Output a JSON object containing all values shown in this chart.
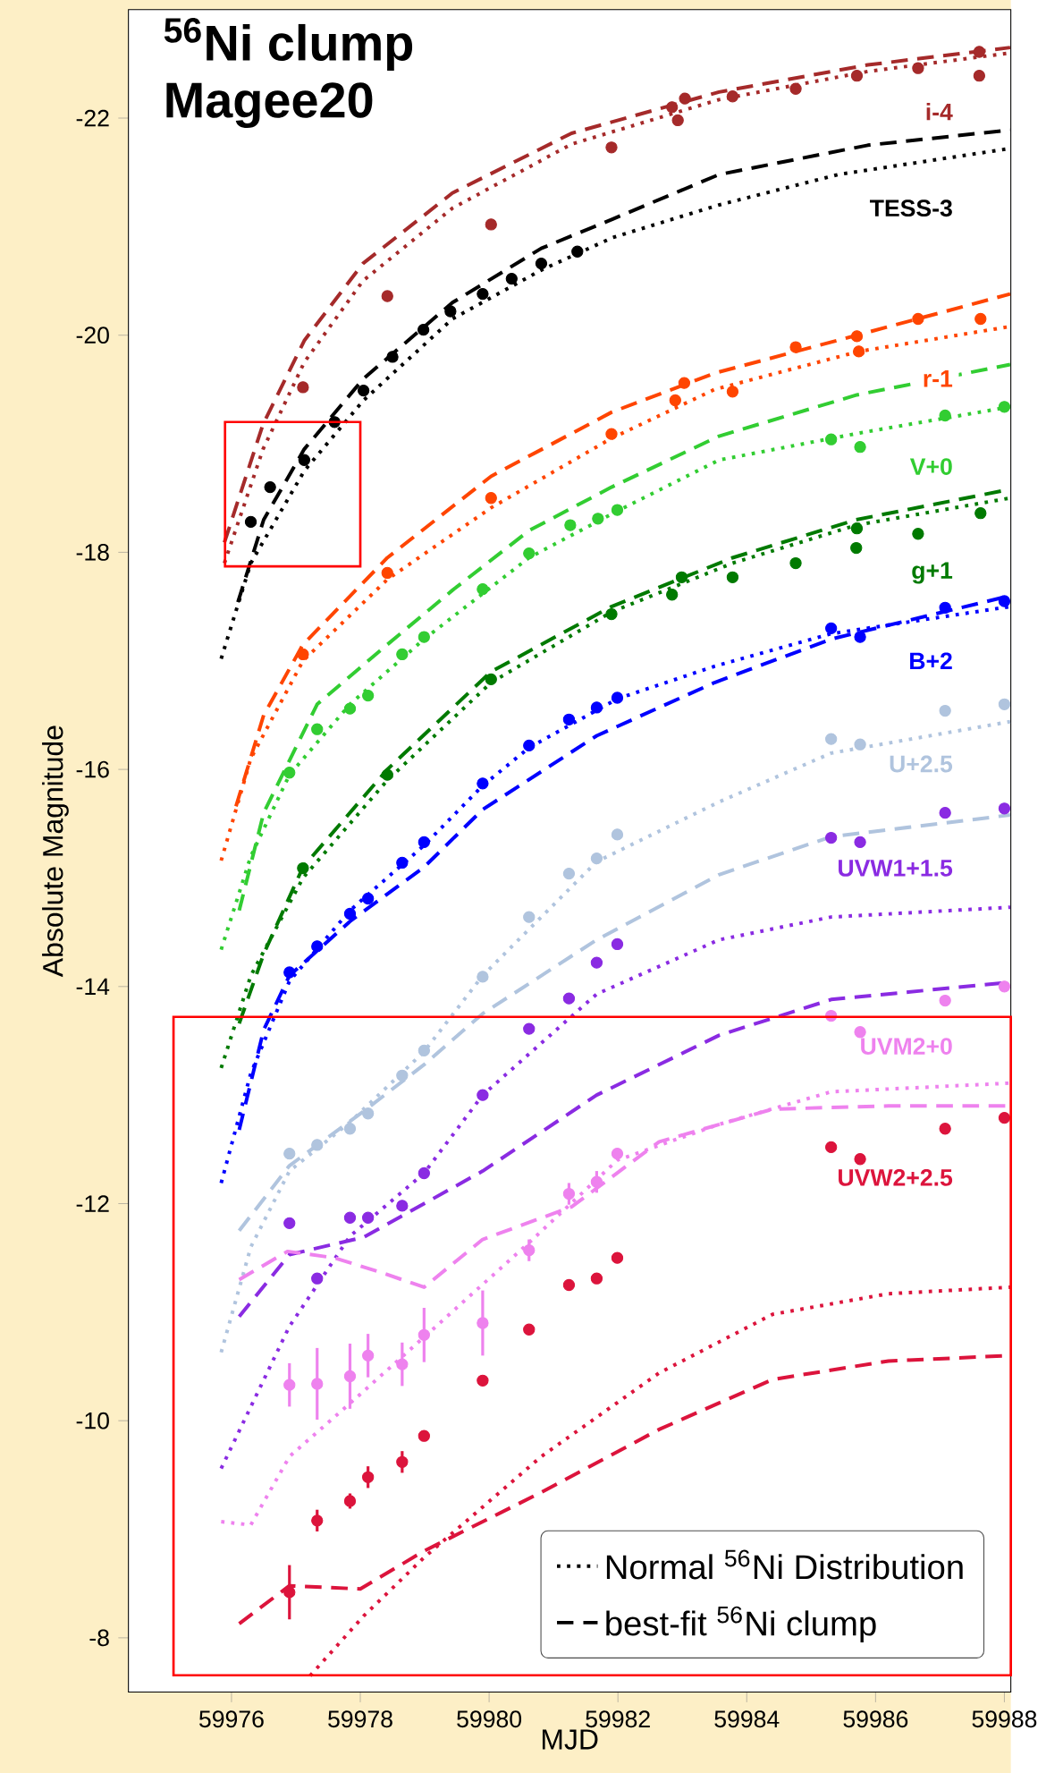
{
  "chart_data": {
    "type": "scatter",
    "title": "$^{56}$Ni clump",
    "subtitle": "Magee20",
    "xlabel": "MJD",
    "ylabel": "Absolute Magnitude",
    "xlim": [
      59974.4,
      59988.1
    ],
    "ylim": [
      -7.5,
      -23.0
    ],
    "xticks": [
      59976,
      59978,
      59980,
      59982,
      59984,
      59986,
      59988
    ],
    "yticks": [
      -22,
      -20,
      -18,
      -16,
      -14,
      -12,
      -10,
      -8
    ],
    "legend": "bottom right",
    "annotations": [
      "Normal $^{56}$Ni Distribution",
      "best-fit $^{56}$Ni clump"
    ],
    "series": [
      {
        "name": "i-4",
        "marker": "circle",
        "color": "#a52a2a",
        "x": [
          59977.11,
          59978.42,
          59980.03,
          59981.9,
          59982.84,
          59982.93,
          59983.04,
          59983.78,
          59984.76,
          59985.71,
          59986.66,
          59987.61,
          59987.61
        ],
        "values": [
          -19.52,
          -20.36,
          -21.02,
          -21.73,
          -22.1,
          -21.98,
          -22.18,
          -22.2,
          -22.27,
          -22.39,
          -22.46,
          -22.39,
          -22.61
        ]
      },
      {
        "type": "line",
        "line_style": "dotted",
        "color": "#a52a2a",
        "x": [
          59975.89,
          59976.49,
          59977.13,
          59978.04,
          59979.43,
          59981.28,
          59983.57,
          59985.88,
          59988.09
        ],
        "values": [
          -17.9,
          -18.95,
          -19.75,
          -20.5,
          -21.17,
          -21.76,
          -22.17,
          -22.43,
          -22.6
        ]
      },
      {
        "type": "line",
        "line_style": "dashed",
        "color": "#a52a2a",
        "x": [
          59975.89,
          59976.49,
          59977.13,
          59978.04,
          59979.43,
          59981.28,
          59983.57,
          59985.88,
          59988.09
        ],
        "values": [
          -18.09,
          -19.18,
          -19.95,
          -20.66,
          -21.31,
          -21.86,
          -22.24,
          -22.49,
          -22.65
        ]
      },
      {
        "name": "TESS-3",
        "marker": "circle",
        "color": "#000000",
        "x": [
          59976.3,
          59976.6,
          59977.13,
          59977.6,
          59978.05,
          59978.5,
          59978.98,
          59979.4,
          59979.9,
          59980.35,
          59980.81,
          59981.37
        ],
        "values": [
          -18.28,
          -18.6,
          -18.85,
          -19.2,
          -19.49,
          -19.8,
          -20.05,
          -20.22,
          -20.38,
          -20.52,
          -20.66,
          -20.77
        ]
      },
      {
        "type": "line",
        "line_style": "dotted",
        "color": "#000000",
        "x": [
          59975.84,
          59976.3,
          59977.13,
          59978.05,
          59979.43,
          59980.81,
          59981.92,
          59983.57,
          59985.42,
          59988.09
        ],
        "values": [
          -17.02,
          -17.9,
          -18.75,
          -19.4,
          -20.15,
          -20.6,
          -20.9,
          -21.2,
          -21.48,
          -21.72
        ]
      },
      {
        "type": "line",
        "line_style": "dashed",
        "color": "#000000",
        "x": [
          59976.1,
          59976.5,
          59977.13,
          59978.05,
          59979.43,
          59980.81,
          59981.92,
          59983.57,
          59985.88,
          59988.09
        ],
        "values": [
          -17.54,
          -18.3,
          -18.95,
          -19.6,
          -20.3,
          -20.8,
          -21.07,
          -21.48,
          -21.75,
          -21.89
        ]
      },
      {
        "name": "r-1",
        "marker": "circle",
        "color": "#ff4500",
        "x": [
          59977.11,
          59978.42,
          59980.03,
          59981.9,
          59982.89,
          59983.03,
          59983.78,
          59984.76,
          59985.71,
          59985.74,
          59986.66,
          59987.63
        ],
        "values": [
          -17.06,
          -17.81,
          -18.5,
          -19.09,
          -19.4,
          -19.56,
          -19.48,
          -19.89,
          -19.99,
          -19.85,
          -20.15,
          -20.15
        ]
      },
      {
        "type": "line",
        "line_style": "dotted",
        "color": "#ff4500",
        "x": [
          59975.84,
          59976.3,
          59977.11,
          59978.42,
          59980.03,
          59981.9,
          59983.5,
          59985.74,
          59988.09
        ],
        "values": [
          -15.16,
          -16.1,
          -17.0,
          -17.75,
          -18.41,
          -19.05,
          -19.5,
          -19.85,
          -20.08
        ]
      },
      {
        "type": "line",
        "line_style": "dashed",
        "color": "#ff4500",
        "x": [
          59976.07,
          59976.5,
          59977.11,
          59978.42,
          59980.03,
          59981.9,
          59983.5,
          59985.71,
          59988.09
        ],
        "values": [
          -15.66,
          -16.5,
          -17.15,
          -17.95,
          -18.7,
          -19.29,
          -19.65,
          -20.0,
          -20.38
        ]
      },
      {
        "name": "V+0",
        "marker": "circle",
        "color": "#32cd32",
        "x": [
          59976.9,
          59977.33,
          59977.84,
          59978.12,
          59978.65,
          59978.99,
          59979.9,
          59980.62,
          59981.26,
          59981.69,
          59981.99,
          59985.31,
          59985.76,
          59987.08,
          59988.0
        ],
        "values": [
          -15.97,
          -16.37,
          -16.56,
          -16.68,
          -17.06,
          -17.22,
          -17.66,
          -17.99,
          -18.25,
          -18.31,
          -18.39,
          -19.04,
          -18.97,
          -19.26,
          -19.34
        ]
      },
      {
        "type": "line",
        "line_style": "dotted",
        "color": "#32cd32",
        "x": [
          59975.84,
          59976.3,
          59976.9,
          59977.84,
          59978.99,
          59980.62,
          59981.99,
          59983.57,
          59985.76,
          59988.09
        ],
        "values": [
          -14.34,
          -15.2,
          -15.95,
          -16.6,
          -17.2,
          -17.95,
          -18.38,
          -18.85,
          -19.1,
          -19.34
        ]
      },
      {
        "type": "line",
        "line_style": "dashed",
        "color": "#32cd32",
        "x": [
          59976.12,
          59976.5,
          59977.33,
          59978.42,
          59979.43,
          59980.62,
          59981.9,
          59983.57,
          59985.71,
          59988.09
        ],
        "values": [
          -14.7,
          -15.6,
          -16.6,
          -17.15,
          -17.65,
          -18.2,
          -18.6,
          -19.07,
          -19.45,
          -19.73
        ]
      },
      {
        "name": "g+1",
        "marker": "circle",
        "color": "#007a00",
        "x": [
          59977.11,
          59978.42,
          59980.03,
          59981.9,
          59982.84,
          59982.99,
          59983.78,
          59984.76,
          59985.7,
          59985.71,
          59986.66,
          59987.63
        ],
        "values": [
          -15.09,
          -15.95,
          -16.83,
          -17.43,
          -17.61,
          -17.77,
          -17.77,
          -17.9,
          -18.04,
          -18.22,
          -18.17,
          -18.36
        ]
      },
      {
        "type": "line",
        "line_style": "dotted",
        "color": "#007a00",
        "x": [
          59975.84,
          59976.3,
          59977.11,
          59978.42,
          59980.03,
          59981.9,
          59983.78,
          59985.7,
          59988.09
        ],
        "values": [
          -13.25,
          -14.1,
          -15.0,
          -15.9,
          -16.8,
          -17.45,
          -17.9,
          -18.25,
          -18.5
        ]
      },
      {
        "type": "line",
        "line_style": "dashed",
        "color": "#007a00",
        "x": [
          59976.12,
          59976.5,
          59977.11,
          59978.42,
          59980.03,
          59981.9,
          59983.78,
          59985.7,
          59988.09
        ],
        "values": [
          -13.66,
          -14.3,
          -15.1,
          -16.0,
          -16.9,
          -17.5,
          -17.95,
          -18.3,
          -18.58
        ]
      },
      {
        "name": "B+2",
        "marker": "circle",
        "color": "#0000ff",
        "x": [
          59976.9,
          59977.33,
          59977.84,
          59978.12,
          59978.65,
          59978.99,
          59979.9,
          59980.62,
          59981.24,
          59981.67,
          59981.99,
          59985.31,
          59985.76,
          59987.08,
          59988.0
        ],
        "values": [
          -14.13,
          -14.37,
          -14.67,
          -14.81,
          -15.14,
          -15.33,
          -15.87,
          -16.22,
          -16.46,
          -16.57,
          -16.66,
          -17.3,
          -17.22,
          -17.49,
          -17.55
        ]
      },
      {
        "type": "line",
        "line_style": "dotted",
        "color": "#0000ff",
        "x": [
          59975.84,
          59976.3,
          59976.9,
          59977.84,
          59978.99,
          59979.9,
          59980.62,
          59981.99,
          59983.5,
          59985.31,
          59988.09
        ],
        "values": [
          -12.19,
          -13.2,
          -14.05,
          -14.7,
          -15.3,
          -15.85,
          -16.2,
          -16.65,
          -16.95,
          -17.25,
          -17.5
        ]
      },
      {
        "type": "line",
        "line_style": "dashed",
        "color": "#0000ff",
        "x": [
          59976.12,
          59976.5,
          59976.9,
          59977.84,
          59978.99,
          59979.9,
          59981.67,
          59983.5,
          59985.31,
          59988.09
        ],
        "values": [
          -12.68,
          -13.6,
          -14.1,
          -14.6,
          -15.1,
          -15.63,
          -16.31,
          -16.8,
          -17.2,
          -17.6
        ]
      },
      {
        "name": "U+2.5",
        "marker": "circle",
        "color": "#b0c4de",
        "x": [
          59976.9,
          59977.33,
          59977.84,
          59978.12,
          59978.65,
          59978.99,
          59979.9,
          59980.62,
          59981.24,
          59981.67,
          59981.99,
          59985.31,
          59985.76,
          59987.08,
          59988.0
        ],
        "values": [
          -12.46,
          -12.54,
          -12.69,
          -12.83,
          -13.18,
          -13.41,
          -14.09,
          -14.64,
          -15.04,
          -15.18,
          -15.4,
          -16.28,
          -16.23,
          -16.54,
          -16.6
        ]
      },
      {
        "type": "line",
        "line_style": "dotted",
        "color": "#b0c4de",
        "x": [
          59975.84,
          59976.3,
          59976.9,
          59977.84,
          59978.99,
          59979.9,
          59981.67,
          59983.57,
          59985.31,
          59988.09
        ],
        "values": [
          -10.63,
          -11.6,
          -12.3,
          -12.75,
          -13.4,
          -14.1,
          -15.15,
          -15.7,
          -16.15,
          -16.44
        ]
      },
      {
        "type": "line",
        "line_style": "dashed",
        "color": "#b0c4de",
        "x": [
          59976.12,
          59976.9,
          59978.05,
          59978.99,
          59979.9,
          59981.67,
          59983.57,
          59985.31,
          59988.09
        ],
        "values": [
          -11.75,
          -12.35,
          -12.85,
          -13.28,
          -13.75,
          -14.43,
          -15.03,
          -15.38,
          -15.58
        ]
      },
      {
        "name": "UVW1+1.5",
        "marker": "circle",
        "color": "#8a2be2",
        "x": [
          59976.9,
          59977.33,
          59977.84,
          59978.12,
          59978.65,
          59978.99,
          59979.9,
          59980.62,
          59981.24,
          59981.67,
          59981.99,
          59985.31,
          59985.76,
          59987.08,
          59988.0
        ],
        "values": [
          -11.82,
          -11.31,
          -11.87,
          -11.87,
          -11.98,
          -12.28,
          -13.0,
          -13.61,
          -13.89,
          -14.22,
          -14.39,
          -15.37,
          -15.33,
          -15.6,
          -15.64
        ]
      },
      {
        "type": "line",
        "line_style": "dotted",
        "color": "#8a2be2",
        "x": [
          59975.84,
          59976.9,
          59977.84,
          59978.99,
          59979.9,
          59981.67,
          59983.57,
          59985.31,
          59988.09
        ],
        "values": [
          -9.56,
          -10.87,
          -11.7,
          -12.28,
          -13.0,
          -13.93,
          -14.43,
          -14.64,
          -14.73
        ]
      },
      {
        "type": "line",
        "line_style": "dashed",
        "color": "#8a2be2",
        "x": [
          59976.12,
          59976.9,
          59978.05,
          59978.72,
          59979.9,
          59981.67,
          59983.57,
          59985.31,
          59988.09
        ],
        "values": [
          -10.96,
          -11.53,
          -11.69,
          -11.91,
          -12.3,
          -13.0,
          -13.55,
          -13.88,
          -14.04
        ]
      },
      {
        "name": "UVM2+0",
        "marker": "circle",
        "color": "#ee82ee",
        "x": [
          59976.9,
          59977.33,
          59977.84,
          59978.12,
          59978.65,
          59978.99,
          59979.9,
          59980.62,
          59981.24,
          59981.67,
          59981.99,
          59985.31,
          59985.76,
          59987.08,
          59988.0
        ],
        "values": [
          -10.33,
          -10.34,
          -10.41,
          -10.6,
          -10.52,
          -10.79,
          -10.9,
          -11.57,
          -12.09,
          -12.2,
          -12.46,
          -13.73,
          -13.58,
          -13.87,
          -14.0
        ],
        "errors": [
          0.2,
          0.33,
          0.3,
          0.2,
          0.2,
          0.25,
          0.3,
          0.1,
          0.1,
          0.1,
          null,
          null,
          null,
          null,
          null
        ]
      },
      {
        "type": "line",
        "line_style": "dotted",
        "color": "#ee82ee",
        "x": [
          59975.84,
          59976.3,
          59976.9,
          59977.84,
          59978.99,
          59980.62,
          59981.99,
          59983.57,
          59985.31,
          59988.09
        ],
        "values": [
          -9.07,
          -9.04,
          -9.67,
          -10.16,
          -10.77,
          -11.64,
          -12.4,
          -12.73,
          -13.03,
          -13.11
        ]
      },
      {
        "type": "line",
        "line_style": "dashed",
        "color": "#ee82ee",
        "x": [
          59976.12,
          59976.87,
          59977.6,
          59978.3,
          59978.99,
          59979.9,
          59981.28,
          59982.64,
          59984.4,
          59986.2,
          59988.09
        ],
        "values": [
          -11.3,
          -11.56,
          -11.5,
          -11.37,
          -11.23,
          -11.67,
          -11.97,
          -12.57,
          -12.87,
          -12.9,
          -12.9
        ]
      },
      {
        "name": "UVW2+2.5",
        "marker": "circle",
        "color": "#dc143c",
        "x": [
          59976.9,
          59977.33,
          59977.84,
          59978.12,
          59978.65,
          59978.99,
          59979.9,
          59980.62,
          59981.24,
          59981.67,
          59981.99,
          59985.31,
          59985.76,
          59987.08,
          59988.0
        ],
        "values": [
          -8.42,
          -9.08,
          -9.26,
          -9.48,
          -9.62,
          -9.86,
          -10.37,
          -10.84,
          -11.25,
          -11.31,
          -11.5,
          -12.52,
          -12.41,
          -12.69,
          -12.79
        ],
        "errors": [
          0.25,
          0.1,
          0.07,
          0.1,
          0.1,
          null,
          null,
          null,
          null,
          null,
          null,
          null,
          null,
          null,
          null
        ]
      },
      {
        "type": "line",
        "line_style": "dotted",
        "color": "#dc143c",
        "x": [
          59977.22,
          59978.05,
          59978.99,
          59980.81,
          59982.64,
          59984.4,
          59986.2,
          59988.09
        ],
        "values": [
          -7.65,
          -8.2,
          -8.74,
          -9.67,
          -10.44,
          -10.98,
          -11.17,
          -11.23
        ]
      },
      {
        "type": "line",
        "line_style": "dashed",
        "color": "#dc143c",
        "x": [
          59976.12,
          59976.9,
          59978.0,
          59978.99,
          59980.81,
          59982.64,
          59984.4,
          59986.2,
          59988.09
        ],
        "values": [
          -8.13,
          -8.48,
          -8.45,
          -8.8,
          -9.34,
          -9.92,
          -10.38,
          -10.55,
          -10.6
        ]
      }
    ]
  }
}
